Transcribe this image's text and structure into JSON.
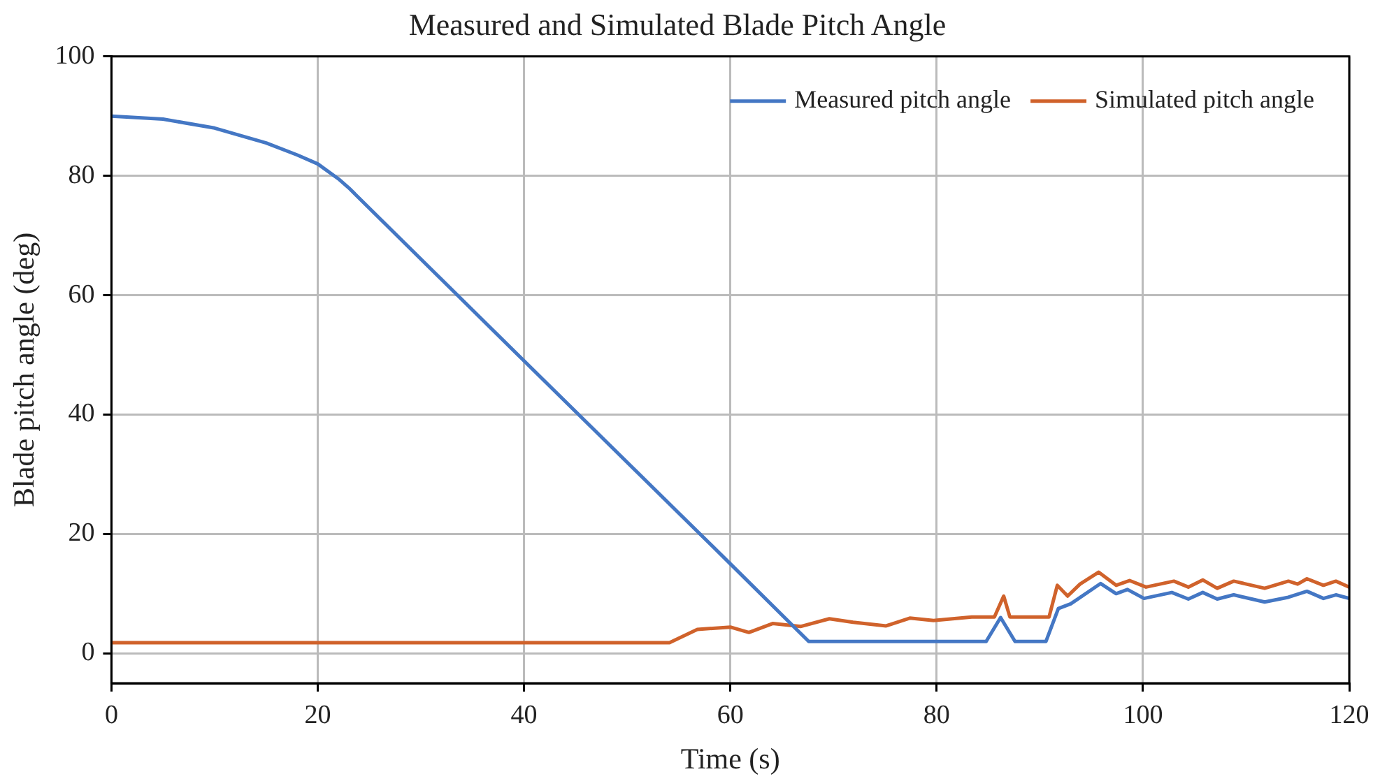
{
  "chart_data": {
    "type": "line",
    "title": "Measured and Simulated Blade Pitch Angle",
    "xlabel": "Time (s)",
    "ylabel": "Blade pitch angle (deg)",
    "xlim": [
      0,
      120
    ],
    "xticks": [
      0,
      20,
      40,
      60,
      80,
      100,
      120
    ],
    "ylim": [
      -5,
      100
    ],
    "yticks": [
      0,
      20,
      40,
      60,
      80,
      100
    ],
    "grid": true,
    "legend": "top right",
    "marker": "none",
    "line_style": "solid",
    "series": [
      {
        "name": "Measured pitch angle",
        "color": "#4477c4",
        "x": [
          0,
          5,
          10,
          15,
          18,
          20,
          22,
          23,
          40,
          60,
          67.6,
          84.8,
          86.2,
          87.6,
          90.6,
          91.8,
          93,
          95.9,
          97.4,
          98.5,
          100.1,
          102.8,
          104.4,
          105.8,
          107.2,
          108.8,
          111.8,
          114.1,
          115.9,
          117.5,
          118.7,
          120
        ],
        "values": [
          90,
          89.5,
          88,
          85.5,
          83.5,
          82,
          79.5,
          78,
          49,
          15,
          2,
          2,
          6,
          2,
          2,
          7.5,
          8.3,
          11.7,
          10,
          10.7,
          9.2,
          10.2,
          9.1,
          10.2,
          9.1,
          9.8,
          8.6,
          9.4,
          10.4,
          9.2,
          9.8,
          9.2
        ]
      },
      {
        "name": "Simulated pitch angle",
        "color": "#d0622b",
        "x": [
          0,
          54.1,
          56.8,
          60,
          61.8,
          64.1,
          66.8,
          69.6,
          71.9,
          75.1,
          77.4,
          79.7,
          83.4,
          85.6,
          86.5,
          87.1,
          90.9,
          91.7,
          92.7,
          93.9,
          95.7,
          97.4,
          98.7,
          100.3,
          103,
          104.4,
          105.8,
          107.2,
          108.8,
          111.8,
          114.1,
          115,
          115.9,
          117.5,
          118.7,
          120
        ],
        "values": [
          1.8,
          1.8,
          4,
          4.4,
          3.5,
          5,
          4.5,
          5.8,
          5.2,
          4.6,
          5.9,
          5.5,
          6.1,
          6.1,
          9.6,
          6.1,
          6.1,
          11.4,
          9.6,
          11.6,
          13.6,
          11.4,
          12.2,
          11.1,
          12.1,
          11.1,
          12.3,
          10.9,
          12.1,
          10.9,
          12.1,
          11.6,
          12.5,
          11.4,
          12.1,
          11.1
        ]
      }
    ]
  }
}
